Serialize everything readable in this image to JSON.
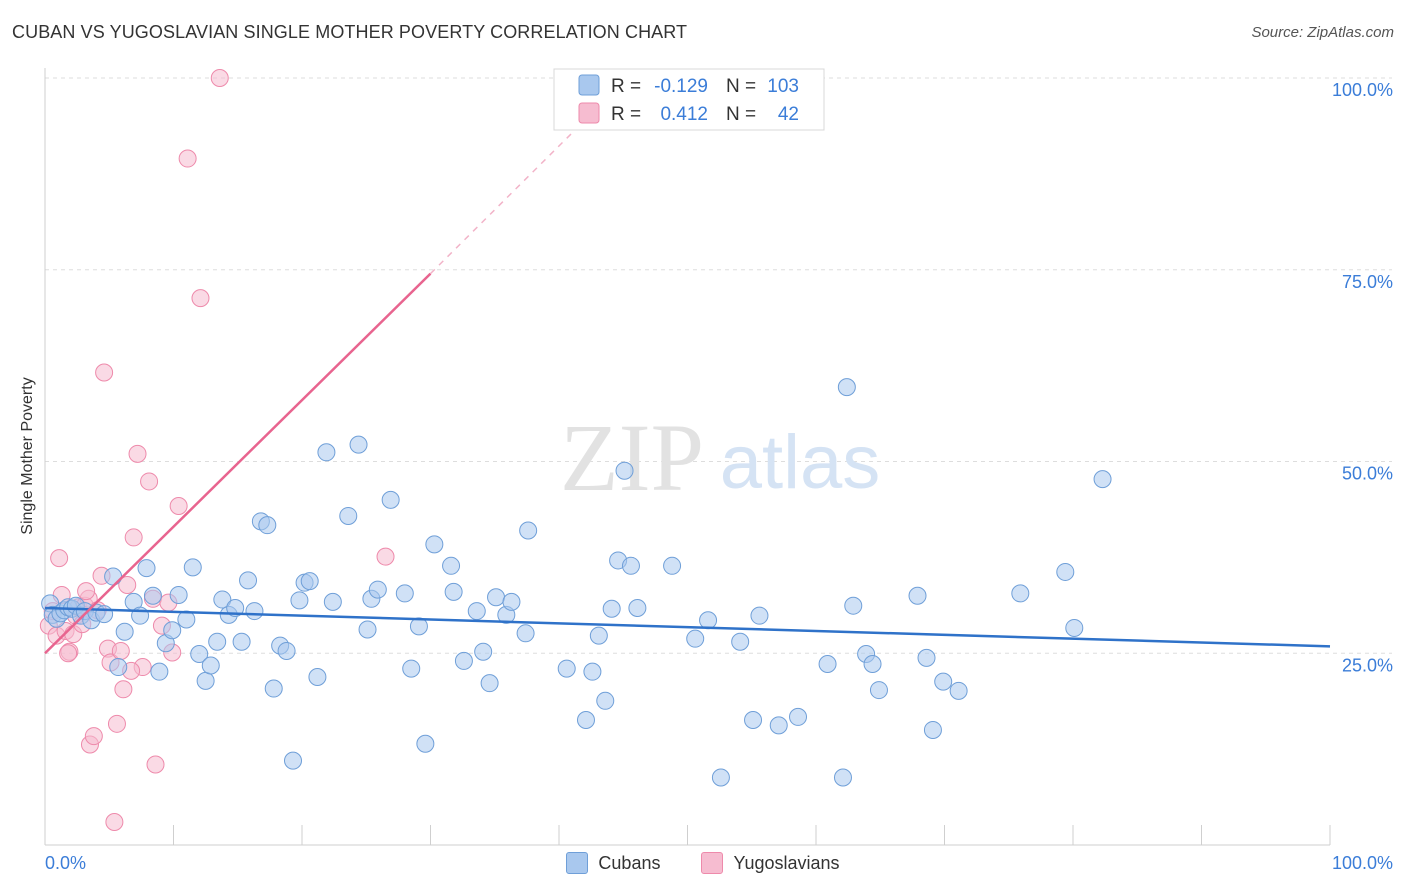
{
  "header": {
    "title": "CUBAN VS YUGOSLAVIAN SINGLE MOTHER POVERTY CORRELATION CHART",
    "source": "Source: ZipAtlas.com"
  },
  "watermark": {
    "zip": "ZIP",
    "atlas": "atlas"
  },
  "colors": {
    "blue_fill": "#a9c8ee",
    "blue_stroke": "#6f9fd8",
    "blue_line": "#2f72c9",
    "pink_fill": "#f6bcd0",
    "pink_stroke": "#ee8aab",
    "pink_line": "#e8648f",
    "tick_text": "#3b7dd8",
    "grid": "#dddddd"
  },
  "legend_top": {
    "rows": [
      {
        "r_label": "R =",
        "r_value": "-0.129",
        "n_label": "N =",
        "n_value": "103"
      },
      {
        "r_label": "R =",
        "r_value": "0.412",
        "n_label": "N =",
        "n_value": "42"
      }
    ]
  },
  "legend_bottom": {
    "series1": "Cubans",
    "series2": "Yugoslavians"
  },
  "chart_data": {
    "type": "scatter",
    "title": "CUBAN VS YUGOSLAVIAN SINGLE MOTHER POVERTY CORRELATION CHART",
    "xlabel": "",
    "ylabel": "Single Mother Poverty",
    "xlim": [
      0,
      100
    ],
    "ylim": [
      0,
      100
    ],
    "x_tick_labels": [
      "0.0%",
      "100.0%"
    ],
    "y_tick_values": [
      25,
      50,
      75,
      100
    ],
    "y_tick_labels": [
      "25.0%",
      "50.0%",
      "75.0%",
      "100.0%"
    ],
    "grid": true,
    "series": [
      {
        "name": "Cubans",
        "r": -0.129,
        "n": 103,
        "trend": {
          "x": [
            0,
            100
          ],
          "y": [
            30.9,
            25.9
          ]
        },
        "points": [
          [
            0.4,
            31.5
          ],
          [
            0.6,
            30.0
          ],
          [
            0.9,
            29.5
          ],
          [
            1.2,
            30.2
          ],
          [
            1.5,
            30.6
          ],
          [
            1.8,
            31.0
          ],
          [
            2.1,
            30.8
          ],
          [
            2.4,
            31.2
          ],
          [
            2.8,
            29.9
          ],
          [
            3.1,
            30.5
          ],
          [
            3.6,
            29.3
          ],
          [
            4.0,
            30.3
          ],
          [
            4.6,
            30.1
          ],
          [
            5.3,
            35.0
          ],
          [
            5.7,
            23.2
          ],
          [
            6.2,
            27.8
          ],
          [
            6.9,
            31.7
          ],
          [
            7.4,
            29.9
          ],
          [
            7.9,
            36.1
          ],
          [
            8.4,
            32.5
          ],
          [
            8.9,
            22.6
          ],
          [
            9.4,
            26.3
          ],
          [
            9.9,
            28.0
          ],
          [
            10.4,
            32.6
          ],
          [
            11.0,
            29.4
          ],
          [
            11.5,
            36.2
          ],
          [
            12.0,
            24.9
          ],
          [
            12.5,
            21.4
          ],
          [
            12.9,
            23.4
          ],
          [
            13.4,
            26.5
          ],
          [
            13.8,
            32.0
          ],
          [
            14.3,
            30.0
          ],
          [
            14.8,
            30.9
          ],
          [
            15.3,
            26.5
          ],
          [
            15.8,
            34.5
          ],
          [
            16.3,
            30.5
          ],
          [
            16.8,
            42.2
          ],
          [
            17.3,
            41.7
          ],
          [
            17.8,
            20.4
          ],
          [
            18.3,
            26.0
          ],
          [
            18.8,
            25.3
          ],
          [
            19.3,
            11.0
          ],
          [
            19.8,
            31.9
          ],
          [
            20.2,
            34.2
          ],
          [
            20.6,
            34.4
          ],
          [
            21.2,
            21.9
          ],
          [
            21.9,
            51.2
          ],
          [
            22.4,
            31.7
          ],
          [
            23.6,
            42.9
          ],
          [
            24.4,
            52.2
          ],
          [
            25.1,
            28.1
          ],
          [
            25.4,
            32.1
          ],
          [
            25.9,
            33.3
          ],
          [
            26.9,
            45.0
          ],
          [
            28.0,
            32.8
          ],
          [
            28.5,
            23.0
          ],
          [
            29.1,
            28.5
          ],
          [
            29.6,
            13.2
          ],
          [
            30.3,
            39.2
          ],
          [
            31.6,
            36.4
          ],
          [
            31.8,
            33.0
          ],
          [
            32.6,
            24.0
          ],
          [
            33.6,
            30.5
          ],
          [
            34.1,
            25.2
          ],
          [
            34.6,
            21.1
          ],
          [
            35.1,
            32.3
          ],
          [
            35.9,
            30.0
          ],
          [
            36.3,
            31.7
          ],
          [
            37.4,
            27.6
          ],
          [
            37.6,
            41.0
          ],
          [
            40.6,
            23.0
          ],
          [
            42.1,
            16.3
          ],
          [
            42.6,
            22.6
          ],
          [
            43.1,
            27.3
          ],
          [
            43.6,
            18.8
          ],
          [
            44.1,
            30.8
          ],
          [
            44.6,
            37.1
          ],
          [
            45.1,
            48.8
          ],
          [
            45.6,
            36.4
          ],
          [
            46.1,
            30.9
          ],
          [
            48.8,
            36.4
          ],
          [
            50.6,
            26.9
          ],
          [
            51.6,
            29.3
          ],
          [
            52.6,
            8.8
          ],
          [
            54.1,
            26.5
          ],
          [
            55.1,
            16.3
          ],
          [
            55.6,
            29.9
          ],
          [
            57.1,
            15.6
          ],
          [
            58.6,
            16.7
          ],
          [
            60.9,
            23.6
          ],
          [
            62.1,
            8.8
          ],
          [
            62.4,
            59.7
          ],
          [
            62.9,
            31.2
          ],
          [
            63.9,
            24.9
          ],
          [
            64.4,
            23.6
          ],
          [
            64.9,
            20.2
          ],
          [
            67.9,
            32.5
          ],
          [
            68.6,
            24.4
          ],
          [
            69.1,
            15.0
          ],
          [
            69.9,
            21.3
          ],
          [
            71.1,
            20.1
          ],
          [
            75.9,
            32.8
          ],
          [
            79.4,
            35.6
          ],
          [
            80.1,
            28.3
          ],
          [
            82.3,
            47.7
          ]
        ]
      },
      {
        "name": "Yugoslavians",
        "r": 0.412,
        "n": 42,
        "trend": {
          "x": [
            0,
            30
          ],
          "y": [
            25.0,
            74.5
          ]
        },
        "trend_dashed": {
          "x": [
            30,
            42.5
          ],
          "y": [
            74.5,
            95.3
          ]
        },
        "points": [
          [
            0.3,
            28.6
          ],
          [
            0.6,
            30.5
          ],
          [
            0.9,
            27.3
          ],
          [
            1.1,
            37.4
          ],
          [
            1.3,
            32.6
          ],
          [
            1.6,
            27.9
          ],
          [
            1.9,
            25.2
          ],
          [
            2.2,
            27.5
          ],
          [
            2.4,
            29.9
          ],
          [
            2.6,
            31.0
          ],
          [
            2.9,
            28.8
          ],
          [
            3.1,
            31.2
          ],
          [
            3.4,
            32.1
          ],
          [
            3.5,
            13.1
          ],
          [
            3.8,
            14.2
          ],
          [
            4.1,
            30.6
          ],
          [
            4.4,
            35.1
          ],
          [
            4.6,
            61.6
          ],
          [
            4.9,
            25.6
          ],
          [
            5.1,
            23.8
          ],
          [
            5.4,
            3.0
          ],
          [
            5.6,
            15.8
          ],
          [
            5.9,
            25.3
          ],
          [
            6.1,
            20.3
          ],
          [
            6.4,
            33.9
          ],
          [
            6.9,
            40.1
          ],
          [
            7.2,
            51.0
          ],
          [
            7.6,
            23.2
          ],
          [
            8.1,
            47.4
          ],
          [
            8.4,
            32.1
          ],
          [
            8.6,
            10.5
          ],
          [
            9.1,
            28.6
          ],
          [
            9.6,
            31.6
          ],
          [
            9.9,
            25.1
          ],
          [
            10.4,
            44.2
          ],
          [
            11.1,
            89.5
          ],
          [
            12.1,
            71.3
          ],
          [
            13.6,
            100.0
          ],
          [
            26.5,
            37.6
          ],
          [
            6.7,
            22.7
          ],
          [
            1.8,
            25.0
          ],
          [
            3.2,
            33.1
          ]
        ]
      }
    ]
  }
}
